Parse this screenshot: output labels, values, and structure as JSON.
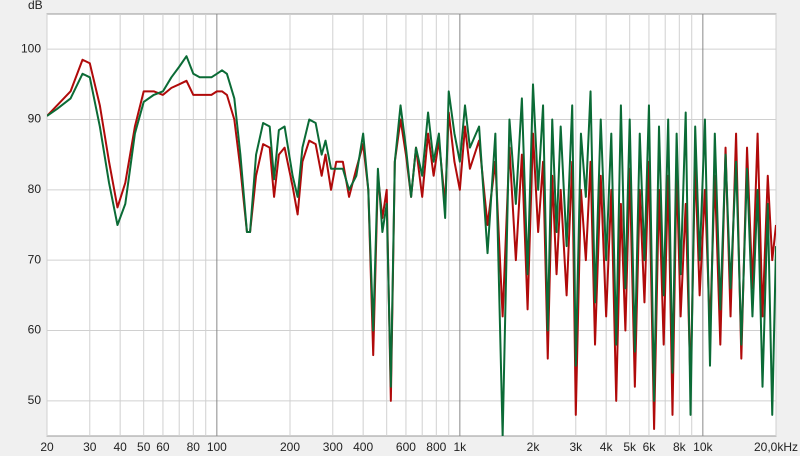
{
  "chart_data": {
    "type": "line",
    "y_label": "dB",
    "xscale": "log",
    "grid": true,
    "xlim": [
      20,
      20000
    ],
    "ylim": [
      45,
      105
    ],
    "yticks": [
      50,
      60,
      70,
      80,
      90,
      100
    ],
    "xticks": [
      20,
      30,
      40,
      50,
      60,
      80,
      100,
      200,
      300,
      400,
      600,
      800,
      {
        "value": 1000,
        "label": "1k"
      },
      {
        "value": 2000,
        "label": "2k"
      },
      {
        "value": 3000,
        "label": "3k"
      },
      {
        "value": 4000,
        "label": "4k"
      },
      {
        "value": 5000,
        "label": "5k"
      },
      {
        "value": 6000,
        "label": "6k"
      },
      {
        "value": 8000,
        "label": "8k"
      },
      {
        "value": 10000,
        "label": "10k"
      },
      {
        "value": 20000,
        "label": "20,0kHz"
      }
    ],
    "minor_xticks": [
      70,
      90,
      500,
      700,
      900,
      7000,
      9000
    ],
    "x": [
      20,
      22,
      25,
      28,
      30,
      33,
      36,
      39,
      42,
      46,
      50,
      55,
      60,
      65,
      70,
      75,
      80,
      85,
      90,
      95,
      100,
      105,
      110,
      118,
      125,
      133,
      137,
      145,
      155,
      165,
      172,
      180,
      190,
      205,
      215,
      225,
      240,
      255,
      270,
      280,
      295,
      310,
      330,
      350,
      375,
      400,
      420,
      440,
      460,
      480,
      500,
      520,
      540,
      570,
      600,
      630,
      660,
      700,
      740,
      780,
      820,
      870,
      900,
      950,
      1000,
      1050,
      1100,
      1200,
      1300,
      1400,
      1500,
      1600,
      1700,
      1800,
      1900,
      2000,
      2100,
      2200,
      2300,
      2400,
      2500,
      2600,
      2750,
      2900,
      3000,
      3150,
      3300,
      3450,
      3600,
      3800,
      4000,
      4200,
      4400,
      4600,
      4800,
      5000,
      5250,
      5500,
      5750,
      6000,
      6300,
      6600,
      6900,
      7200,
      7500,
      7800,
      8100,
      8500,
      8900,
      9300,
      9700,
      10200,
      10700,
      11200,
      11800,
      12400,
      13000,
      13700,
      14400,
      15200,
      16000,
      16800,
      17600,
      18500,
      19300,
      20000
    ],
    "series": [
      {
        "color": "#b00a0a",
        "values": [
          90.5,
          92,
          94,
          98.5,
          98,
          92,
          84,
          77.5,
          81,
          89,
          94,
          94,
          93.5,
          94.5,
          95,
          95.5,
          93.5,
          93.5,
          93.5,
          93.5,
          94,
          94,
          93.5,
          90,
          83,
          74,
          74,
          82,
          86.5,
          86,
          79,
          85,
          86,
          80.5,
          76.5,
          84,
          87,
          86.5,
          82,
          85,
          80,
          84,
          84,
          79,
          83,
          86.5,
          80,
          56.5,
          82,
          76,
          80,
          50,
          84,
          90,
          85,
          79,
          86,
          79,
          88,
          82,
          87,
          78,
          91,
          84,
          80,
          89,
          83,
          87,
          75,
          84,
          62,
          86,
          70,
          85,
          63,
          88,
          74,
          84,
          56,
          82,
          68,
          80,
          65,
          84,
          48,
          80,
          70,
          84,
          58,
          82,
          62,
          80,
          50,
          78,
          60,
          83,
          52,
          80,
          64,
          84,
          46,
          80,
          58,
          82,
          48,
          83,
          62,
          78,
          52,
          84,
          65,
          80,
          60,
          82,
          58,
          86,
          62,
          88,
          56,
          86,
          66,
          88,
          62,
          82,
          70,
          75
        ]
      },
      {
        "color": "#0b6b36",
        "values": [
          90.5,
          91.5,
          93,
          96.5,
          96,
          89,
          81,
          75,
          78,
          88,
          92.5,
          93.5,
          94,
          96,
          97.5,
          99,
          96.5,
          96,
          96,
          96,
          96.5,
          97,
          96.5,
          93,
          85,
          74,
          74,
          85,
          89.5,
          89,
          81.5,
          88.5,
          89,
          82,
          79,
          86,
          90,
          89.5,
          85,
          87,
          83,
          83,
          83,
          80,
          82,
          88,
          80,
          60,
          83,
          74,
          78,
          52,
          84,
          92,
          86,
          79,
          86,
          82,
          91,
          84,
          88,
          76,
          94,
          88,
          84,
          92,
          86,
          89,
          71,
          88,
          45,
          90,
          78,
          93,
          68,
          95,
          80,
          92,
          60,
          90,
          74,
          89,
          72,
          92,
          55,
          88,
          79,
          94,
          64,
          90,
          70,
          88,
          58,
          92,
          66,
          90,
          57,
          88,
          70,
          92,
          50,
          89,
          65,
          90,
          54,
          88,
          68,
          91,
          48,
          89,
          70,
          90,
          55,
          88,
          63,
          85,
          66,
          84,
          58,
          83,
          62,
          80,
          52,
          78,
          48,
          72
        ]
      }
    ]
  }
}
